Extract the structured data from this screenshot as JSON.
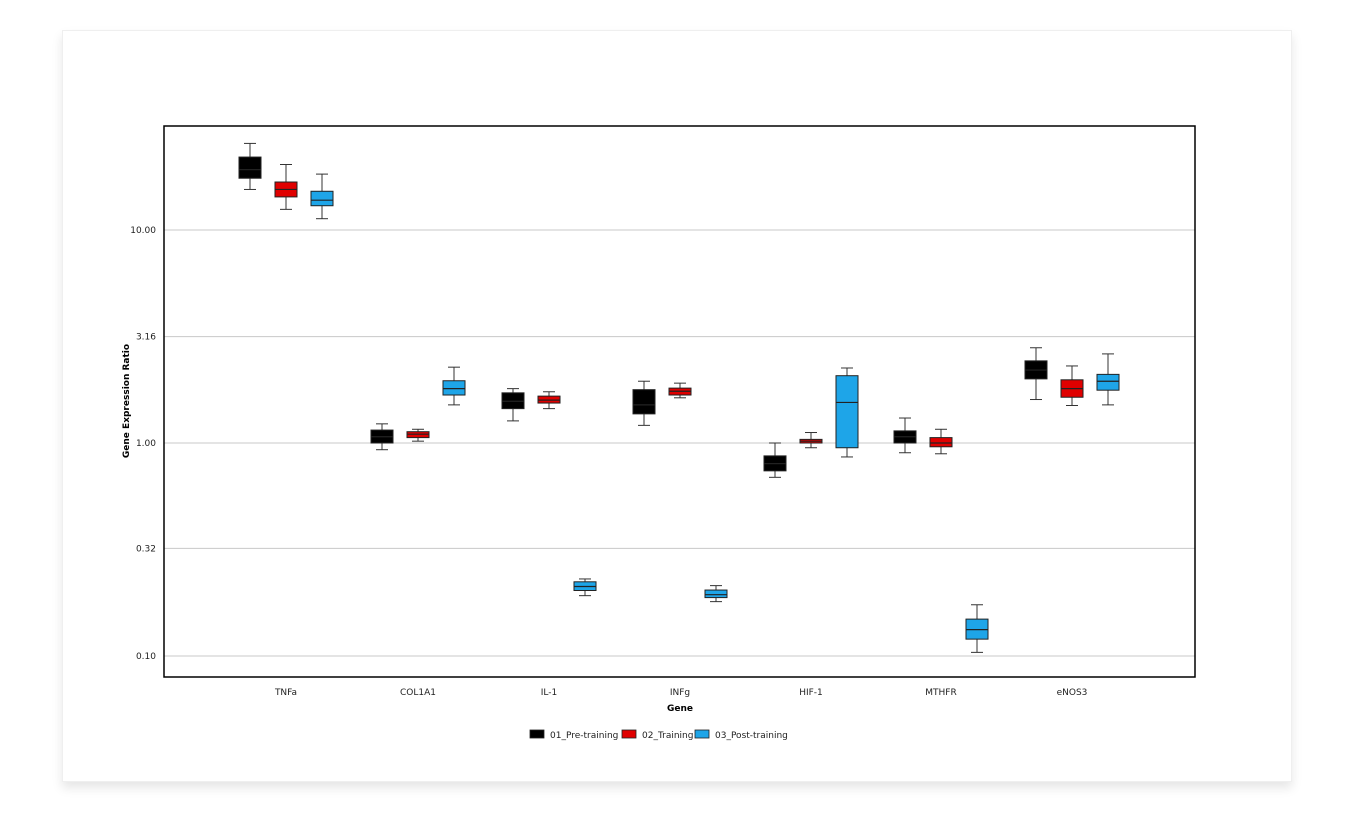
{
  "chart_data": {
    "type": "box",
    "title": "",
    "xlabel": "Gene",
    "ylabel": "Gene Expression Ratio",
    "y_scale": "log",
    "ylim": [
      0.085,
      35
    ],
    "y_ticks": [
      0.1,
      0.32,
      1.0,
      3.16,
      10.0
    ],
    "y_tick_labels": [
      "0.10",
      "0.32",
      "1.00",
      "3.16",
      "10.00"
    ],
    "grid": "horizontal",
    "legend_position": "bottom",
    "categories": [
      "TNFa",
      "COL1A1",
      "IL-1",
      "INFg",
      "HIF-1",
      "MTHFR",
      "eNOS3"
    ],
    "series": [
      {
        "name": "01_Pre-training",
        "color": "#000000",
        "boxes": [
          {
            "whisker_low": 15.5,
            "q1": 17.5,
            "median": 19.2,
            "q3": 22.0,
            "whisker_high": 25.5
          },
          {
            "whisker_low": 0.93,
            "q1": 1.0,
            "median": 1.07,
            "q3": 1.15,
            "whisker_high": 1.23
          },
          {
            "whisker_low": 1.27,
            "q1": 1.45,
            "median": 1.57,
            "q3": 1.72,
            "whisker_high": 1.8
          },
          {
            "whisker_low": 1.21,
            "q1": 1.37,
            "median": 1.51,
            "q3": 1.78,
            "whisker_high": 1.95
          },
          {
            "whisker_low": 0.69,
            "q1": 0.74,
            "median": 0.8,
            "q3": 0.87,
            "whisker_high": 1.0
          },
          {
            "whisker_low": 0.9,
            "q1": 1.0,
            "median": 1.07,
            "q3": 1.14,
            "whisker_high": 1.31
          },
          {
            "whisker_low": 1.6,
            "q1": 2.0,
            "median": 2.2,
            "q3": 2.43,
            "whisker_high": 2.8
          }
        ]
      },
      {
        "name": "02_Training",
        "color": "#e00000",
        "boxes": [
          {
            "whisker_low": 12.5,
            "q1": 14.3,
            "median": 15.5,
            "q3": 16.8,
            "whisker_high": 20.3
          },
          {
            "whisker_low": 1.02,
            "q1": 1.06,
            "median": 1.1,
            "q3": 1.13,
            "whisker_high": 1.16
          },
          {
            "whisker_low": 1.45,
            "q1": 1.54,
            "median": 1.59,
            "q3": 1.66,
            "whisker_high": 1.74
          },
          {
            "whisker_low": 1.63,
            "q1": 1.68,
            "median": 1.75,
            "q3": 1.81,
            "whisker_high": 1.91
          },
          {
            "whisker_low": 0.95,
            "q1": 1.0,
            "median": 1.02,
            "q3": 1.04,
            "whisker_high": 1.12
          },
          {
            "whisker_low": 0.89,
            "q1": 0.96,
            "median": 1.0,
            "q3": 1.06,
            "whisker_high": 1.16
          },
          {
            "whisker_low": 1.5,
            "q1": 1.64,
            "median": 1.8,
            "q3": 1.98,
            "whisker_high": 2.3
          }
        ]
      },
      {
        "name": "03_Post-training",
        "color": "#1ea5e8",
        "boxes": [
          {
            "whisker_low": 11.3,
            "q1": 13.0,
            "median": 13.8,
            "q3": 15.2,
            "whisker_high": 18.3
          },
          {
            "whisker_low": 1.51,
            "q1": 1.68,
            "median": 1.8,
            "q3": 1.96,
            "whisker_high": 2.27
          },
          {
            "whisker_low": 0.192,
            "q1": 0.203,
            "median": 0.212,
            "q3": 0.223,
            "whisker_high": 0.23
          },
          {
            "whisker_low": 0.18,
            "q1": 0.188,
            "median": 0.194,
            "q3": 0.204,
            "whisker_high": 0.214
          },
          {
            "whisker_low": 0.86,
            "q1": 0.95,
            "median": 1.55,
            "q3": 2.07,
            "whisker_high": 2.25
          },
          {
            "whisker_low": 0.104,
            "q1": 0.12,
            "median": 0.133,
            "q3": 0.149,
            "whisker_high": 0.174
          },
          {
            "whisker_low": 1.51,
            "q1": 1.77,
            "median": 1.95,
            "q3": 2.1,
            "whisker_high": 2.62
          }
        ]
      }
    ]
  }
}
